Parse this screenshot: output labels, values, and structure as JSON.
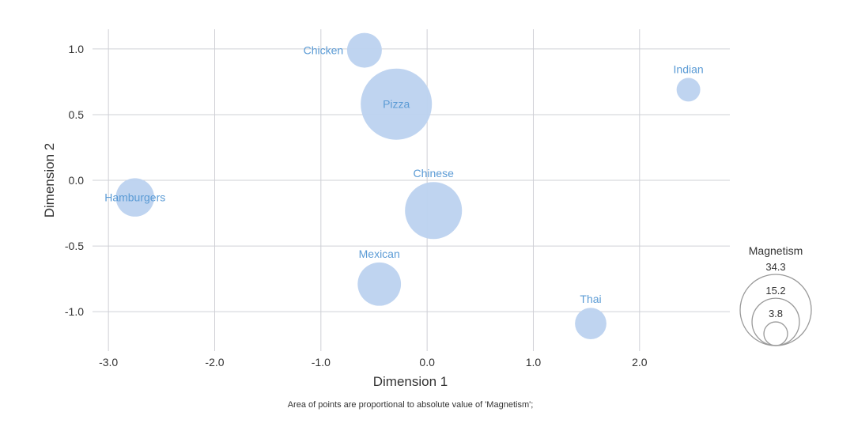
{
  "chart_data": {
    "type": "scatter",
    "xlabel": "Dimension 1",
    "ylabel": "Dimension 2",
    "xlim": [
      -3.15,
      2.85
    ],
    "ylim": [
      -1.3,
      1.15
    ],
    "x_ticks": [
      -3.0,
      -2.0,
      -1.0,
      0.0,
      1.0,
      2.0
    ],
    "x_tick_labels": [
      "-3.0",
      "-2.0",
      "-1.0",
      "0.0",
      "1.0",
      "2.0"
    ],
    "y_ticks": [
      1.0,
      0.5,
      0.0,
      -0.5,
      -1.0
    ],
    "y_tick_labels": [
      "1.0",
      "0.5",
      "0.0",
      "-0.5",
      "-1.0"
    ],
    "grid": true,
    "size_variable": "Magnetism",
    "points": [
      {
        "label": "Chicken",
        "x": -0.59,
        "y": 0.99,
        "size": 8.2
      },
      {
        "label": "Pizza",
        "x": -0.29,
        "y": 0.58,
        "size": 34.3
      },
      {
        "label": "Indian",
        "x": 2.46,
        "y": 0.69,
        "size": 3.8
      },
      {
        "label": "Hamburgers",
        "x": -2.75,
        "y": -0.13,
        "size": 10.0
      },
      {
        "label": "Chinese",
        "x": 0.06,
        "y": -0.23,
        "size": 22.0
      },
      {
        "label": "Mexican",
        "x": -0.45,
        "y": -0.79,
        "size": 12.7
      },
      {
        "label": "Thai",
        "x": 1.54,
        "y": -1.09,
        "size": 6.7
      }
    ],
    "legend": {
      "title": "Magnetism",
      "values": [
        34.3,
        15.2,
        3.8
      ],
      "labels": [
        "34.3",
        "15.2",
        "3.8"
      ],
      "position": "right"
    },
    "footnote": "Area of points are proportional to absolute value of 'Magnetism';",
    "colors": {
      "bubble": "#bcd2ef",
      "label": "#5b9bd5",
      "grid": "#cfd0d6"
    }
  }
}
